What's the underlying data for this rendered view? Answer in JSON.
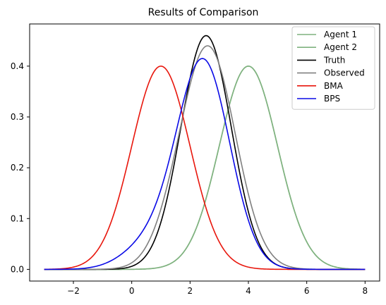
{
  "chart_data": {
    "type": "line",
    "title": "Results of Comparison",
    "xlabel": "",
    "ylabel": "",
    "xlim": [
      -3.5,
      8.5
    ],
    "ylim": [
      -0.023,
      0.483
    ],
    "xticks": [
      -2,
      0,
      2,
      4,
      6,
      8
    ],
    "xtick_labels": [
      "−2",
      "0",
      "2",
      "4",
      "6",
      "8"
    ],
    "yticks": [
      0.0,
      0.1,
      0.2,
      0.3,
      0.4
    ],
    "ytick_labels": [
      "0.0",
      "0.1",
      "0.2",
      "0.3",
      "0.4"
    ],
    "grid": false,
    "legend_position": "top-right",
    "x_range": [
      -3,
      8
    ],
    "series": [
      {
        "name": "Agent 1",
        "color": "#7fb27f",
        "shape": "normal",
        "mean": 4.0,
        "sd": 1.0,
        "note_peak": 0.4
      },
      {
        "name": "Agent 2",
        "color": "#7fb27f",
        "shape": "normal",
        "mean": 4.0,
        "sd": 1.0,
        "note_peak": 0.4
      },
      {
        "name": "Truth",
        "color": "#000000",
        "shape": "normal",
        "mean": 2.55,
        "sd": 0.866,
        "note_peak": 0.46
      },
      {
        "name": "Observed",
        "color": "#808080",
        "shape": "observed",
        "mean": 2.65,
        "sd": 0.9,
        "note_peak": 0.44
      },
      {
        "name": "BMA",
        "color": "#e8160c",
        "shape": "normal",
        "mean": 1.0,
        "sd": 1.0,
        "note_peak": 0.4
      },
      {
        "name": "BPS",
        "color": "#0a0ae6",
        "shape": "bps",
        "mean": 2.45,
        "sd": 0.96,
        "note_peak": 0.415
      }
    ]
  }
}
